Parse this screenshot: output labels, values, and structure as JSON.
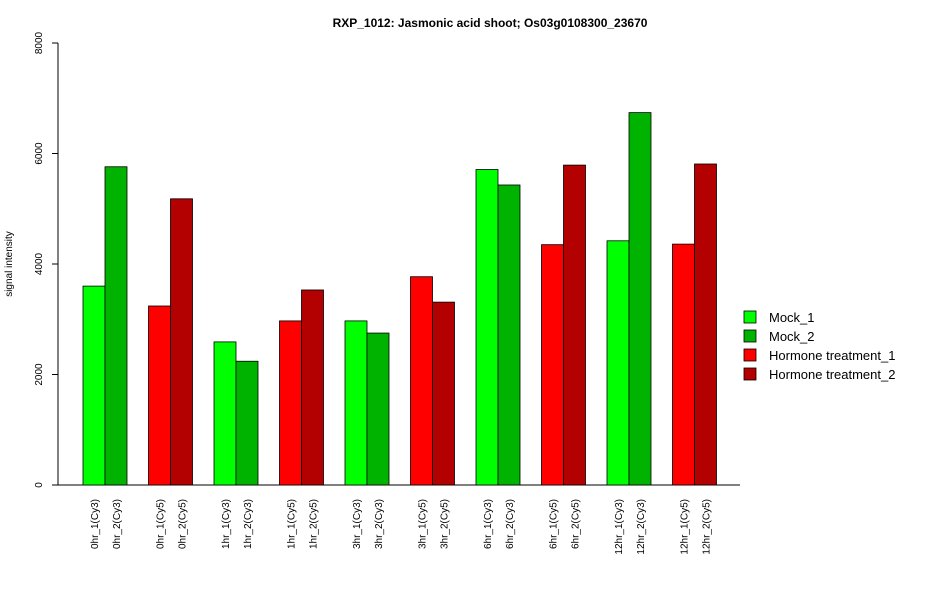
{
  "chart_data": {
    "type": "bar",
    "title": "RXP_1012: Jasmonic acid shoot; Os03g0108300_23670",
    "xlabel": "",
    "ylabel": "signal intensity",
    "ylim": [
      0,
      8000
    ],
    "yticks": [
      0,
      2000,
      4000,
      6000,
      8000
    ],
    "grid": false,
    "legend_position": "right",
    "series_colors": {
      "Mock_1": "#00ff00",
      "Mock_2": "#00b300",
      "Hormone treatment_1": "#ff0000",
      "Hormone treatment_2": "#b30000"
    },
    "legend": [
      {
        "label": "Mock_1",
        "color": "#00ff00"
      },
      {
        "label": "Mock_2",
        "color": "#00b300"
      },
      {
        "label": "Hormone treatment_1",
        "color": "#ff0000"
      },
      {
        "label": "Hormone treatment_2",
        "color": "#b30000"
      }
    ],
    "groups": [
      {
        "bars": [
          {
            "label": "0hr_1(Cy3)",
            "value": 3600,
            "series": "Mock_1"
          },
          {
            "label": "0hr_2(Cy3)",
            "value": 5760,
            "series": "Mock_2"
          }
        ]
      },
      {
        "bars": [
          {
            "label": "0hr_1(Cy5)",
            "value": 3240,
            "series": "Hormone treatment_1"
          },
          {
            "label": "0hr_2(Cy5)",
            "value": 5180,
            "series": "Hormone treatment_2"
          }
        ]
      },
      {
        "bars": [
          {
            "label": "1hr_1(Cy3)",
            "value": 2590,
            "series": "Mock_1"
          },
          {
            "label": "1hr_2(Cy3)",
            "value": 2240,
            "series": "Mock_2"
          }
        ]
      },
      {
        "bars": [
          {
            "label": "1hr_1(Cy5)",
            "value": 2970,
            "series": "Hormone treatment_1"
          },
          {
            "label": "1hr_2(Cy5)",
            "value": 3530,
            "series": "Hormone treatment_2"
          }
        ]
      },
      {
        "bars": [
          {
            "label": "3hr_1(Cy3)",
            "value": 2970,
            "series": "Mock_1"
          },
          {
            "label": "3hr_2(Cy3)",
            "value": 2750,
            "series": "Mock_2"
          }
        ]
      },
      {
        "bars": [
          {
            "label": "3hr_1(Cy5)",
            "value": 3770,
            "series": "Hormone treatment_1"
          },
          {
            "label": "3hr_2(Cy5)",
            "value": 3310,
            "series": "Hormone treatment_2"
          }
        ]
      },
      {
        "bars": [
          {
            "label": "6hr_1(Cy3)",
            "value": 5710,
            "series": "Mock_1"
          },
          {
            "label": "6hr_2(Cy3)",
            "value": 5430,
            "series": "Mock_2"
          }
        ]
      },
      {
        "bars": [
          {
            "label": "6hr_1(Cy5)",
            "value": 4350,
            "series": "Hormone treatment_1"
          },
          {
            "label": "6hr_2(Cy5)",
            "value": 5790,
            "series": "Hormone treatment_2"
          }
        ]
      },
      {
        "bars": [
          {
            "label": "12hr_1(Cy3)",
            "value": 4420,
            "series": "Mock_1"
          },
          {
            "label": "12hr_2(Cy3)",
            "value": 6740,
            "series": "Mock_2"
          }
        ]
      },
      {
        "bars": [
          {
            "label": "12hr_1(Cy5)",
            "value": 4360,
            "series": "Hormone treatment_1"
          },
          {
            "label": "12hr_2(Cy5)",
            "value": 5810,
            "series": "Hormone treatment_2"
          }
        ]
      }
    ]
  }
}
